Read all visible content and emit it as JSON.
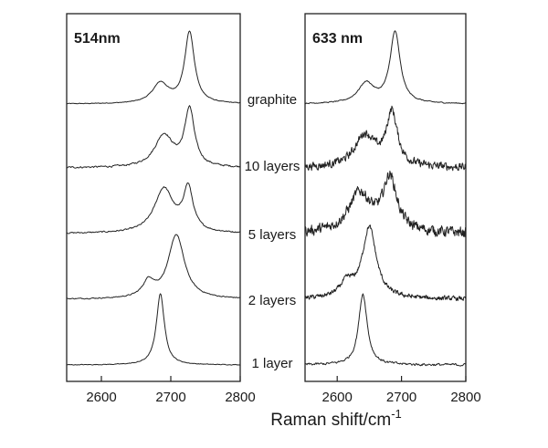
{
  "figure": {
    "xlabel": "Raman shift/cm",
    "xlabel_sup": "-1"
  },
  "chart_data": [
    {
      "type": "line",
      "title": "514nm",
      "xlabel": "Raman shift/cm-1",
      "ylabel": "",
      "xlim": [
        2550,
        2800
      ],
      "xticks": [
        2600,
        2700,
        2800
      ],
      "grid": false,
      "series": [
        {
          "name": "graphite",
          "noise": 0.004,
          "peaks": [
            [
              2727,
              17,
              1.0
            ],
            [
              2685,
              28,
              0.28
            ]
          ]
        },
        {
          "name": "10 layers",
          "noise": 0.01,
          "peaks": [
            [
              2727,
              17,
              0.8
            ],
            [
              2690,
              32,
              0.45
            ]
          ]
        },
        {
          "name": "5 layers",
          "noise": 0.008,
          "peaks": [
            [
              2725,
              17,
              0.6
            ],
            [
              2690,
              33,
              0.62
            ]
          ]
        },
        {
          "name": "2 layers",
          "noise": 0.006,
          "peaks": [
            [
              2708,
              28,
              0.9
            ],
            [
              2668,
              20,
              0.22
            ]
          ]
        },
        {
          "name": "1 layer",
          "noise": 0.004,
          "peaks": [
            [
              2685,
              14,
              1.0
            ]
          ]
        }
      ]
    },
    {
      "type": "line",
      "title": "633 nm",
      "xlabel": "Raman shift/cm-1",
      "ylabel": "",
      "xlim": [
        2550,
        2800
      ],
      "xticks": [
        2600,
        2700,
        2800
      ],
      "grid": false,
      "series": [
        {
          "name": "graphite",
          "noise": 0.006,
          "peaks": [
            [
              2690,
              19,
              1.0
            ],
            [
              2645,
              30,
              0.28
            ]
          ]
        },
        {
          "name": "10 layers",
          "noise": 0.045,
          "peaks": [
            [
              2685,
              21,
              0.75
            ],
            [
              2643,
              38,
              0.45
            ]
          ]
        },
        {
          "name": "5 layers",
          "noise": 0.06,
          "peaks": [
            [
              2682,
              26,
              0.75
            ],
            [
              2635,
              42,
              0.55
            ]
          ]
        },
        {
          "name": "2 layers",
          "noise": 0.025,
          "peaks": [
            [
              2650,
              26,
              1.0
            ],
            [
              2615,
              26,
              0.2
            ]
          ]
        },
        {
          "name": "1 layer",
          "noise": 0.015,
          "peaks": [
            [
              2640,
              16,
              1.0
            ]
          ]
        }
      ]
    }
  ]
}
